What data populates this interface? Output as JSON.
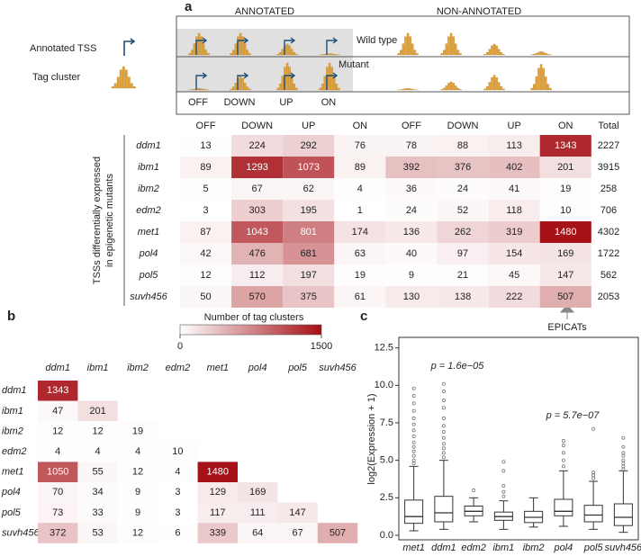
{
  "chart_data": [
    {
      "type": "heatmap",
      "panel": "a",
      "group_labels": [
        "ANNOTATED",
        "NON-ANNOTATED"
      ],
      "schematic": {
        "annotated_tss": "Annotated TSS",
        "tag_cluster": "Tag cluster",
        "wild_type": "Wild type",
        "mutant": "Mutant",
        "states": [
          "OFF",
          "DOWN",
          "UP",
          "ON"
        ]
      },
      "columns": [
        "OFF",
        "DOWN",
        "UP",
        "ON",
        "OFF",
        "DOWN",
        "UP",
        "ON"
      ],
      "total_label": "Total",
      "rows": [
        "ddm1",
        "ibm1",
        "ibm2",
        "edm2",
        "met1",
        "pol4",
        "pol5",
        "suvh456"
      ],
      "values": [
        [
          13,
          224,
          292,
          76,
          78,
          88,
          113,
          1343
        ],
        [
          89,
          1293,
          1073,
          89,
          392,
          376,
          402,
          201
        ],
        [
          5,
          67,
          62,
          4,
          36,
          24,
          41,
          19
        ],
        [
          3,
          303,
          195,
          1,
          24,
          52,
          118,
          10
        ],
        [
          87,
          1043,
          801,
          174,
          136,
          262,
          319,
          1480
        ],
        [
          42,
          476,
          681,
          63,
          40,
          97,
          154,
          169
        ],
        [
          12,
          112,
          197,
          19,
          9,
          21,
          45,
          147
        ],
        [
          50,
          570,
          375,
          61,
          130,
          138,
          222,
          507
        ]
      ],
      "totals": [
        2227,
        3915,
        258,
        706,
        4302,
        1722,
        562,
        2053
      ],
      "ylabel": [
        "TSSs differentially expressed",
        "in epigenetic mutants"
      ],
      "colorbar": {
        "title": "Number of tag clusters",
        "clim": [
          0,
          1500
        ],
        "ticks": [
          0,
          1500
        ],
        "colors": [
          "#ffffff",
          "#a50f15"
        ]
      },
      "annotation": "EPICATs"
    },
    {
      "type": "heatmap",
      "panel": "b",
      "labels": [
        "ddm1",
        "ibm1",
        "ibm2",
        "edm2",
        "met1",
        "pol4",
        "pol5",
        "suvh456"
      ],
      "values": [
        [
          1343
        ],
        [
          47,
          201
        ],
        [
          12,
          12,
          19
        ],
        [
          4,
          4,
          4,
          10
        ],
        [
          1050,
          55,
          12,
          4,
          1480
        ],
        [
          70,
          34,
          9,
          3,
          129,
          169
        ],
        [
          73,
          33,
          9,
          3,
          117,
          111,
          147
        ],
        [
          372,
          53,
          12,
          6,
          339,
          64,
          67,
          507
        ]
      ],
      "clim": [
        0,
        1500
      ],
      "colors": [
        "#ffffff",
        "#a50f15"
      ]
    },
    {
      "type": "box",
      "panel": "c",
      "ylabel": "log2(Expression + 1)",
      "categories": [
        "met1",
        "ddm1",
        "edm2",
        "ibm1",
        "ibm2",
        "pol4",
        "pol5",
        "suvh456"
      ],
      "boxes": [
        {
          "low": 0.3,
          "q1": 0.8,
          "median": 1.25,
          "q3": 2.35,
          "high": 4.6,
          "outliers": [
            4.8,
            5.0,
            5.3,
            5.6,
            5.9,
            6.2,
            6.6,
            7.0,
            7.4,
            7.8,
            8.3,
            8.8,
            9.3,
            9.8
          ]
        },
        {
          "low": 0.4,
          "q1": 0.9,
          "median": 1.5,
          "q3": 2.6,
          "high": 5.0,
          "outliers": [
            5.2,
            5.5,
            5.8,
            6.1,
            6.5,
            6.9,
            7.3,
            7.8,
            8.5,
            9.0,
            9.6,
            10.1
          ]
        },
        {
          "low": 0.9,
          "q1": 1.3,
          "median": 1.6,
          "q3": 1.95,
          "high": 2.5,
          "outliers": [
            3.0
          ]
        },
        {
          "low": 0.4,
          "q1": 1.0,
          "median": 1.25,
          "q3": 1.55,
          "high": 2.3,
          "outliers": [
            2.6,
            2.9,
            3.3,
            4.3,
            4.9
          ]
        },
        {
          "low": 0.55,
          "q1": 0.85,
          "median": 1.2,
          "q3": 1.6,
          "high": 2.5,
          "outliers": []
        },
        {
          "low": 0.6,
          "q1": 1.3,
          "median": 1.6,
          "q3": 2.4,
          "high": 4.3,
          "outliers": [
            4.6,
            5.0,
            5.5,
            6.0,
            6.3
          ]
        },
        {
          "low": 0.4,
          "q1": 0.9,
          "median": 1.35,
          "q3": 2.0,
          "high": 3.6,
          "outliers": [
            3.8,
            4.0,
            4.2,
            7.1
          ]
        },
        {
          "low": 0.2,
          "q1": 0.65,
          "median": 1.2,
          "q3": 2.1,
          "high": 4.3,
          "outliers": [
            4.4,
            4.6,
            4.8,
            5.0,
            5.3,
            5.5,
            5.9,
            6.5
          ]
        }
      ],
      "ylim": [
        -0.3,
        13.2
      ],
      "yticks": [
        {
          "value": 0,
          "label": "0.0"
        },
        {
          "value": 2.5,
          "label": "2.5"
        },
        {
          "value": 5,
          "label": "5.0"
        },
        {
          "value": 7.5,
          "label": "7.5"
        },
        {
          "value": 10,
          "label": "10.0"
        },
        {
          "value": 12.5,
          "label": "12.5"
        }
      ],
      "annotations": [
        "p = 1.6e−05",
        "p = 5.7e−07"
      ]
    }
  ]
}
